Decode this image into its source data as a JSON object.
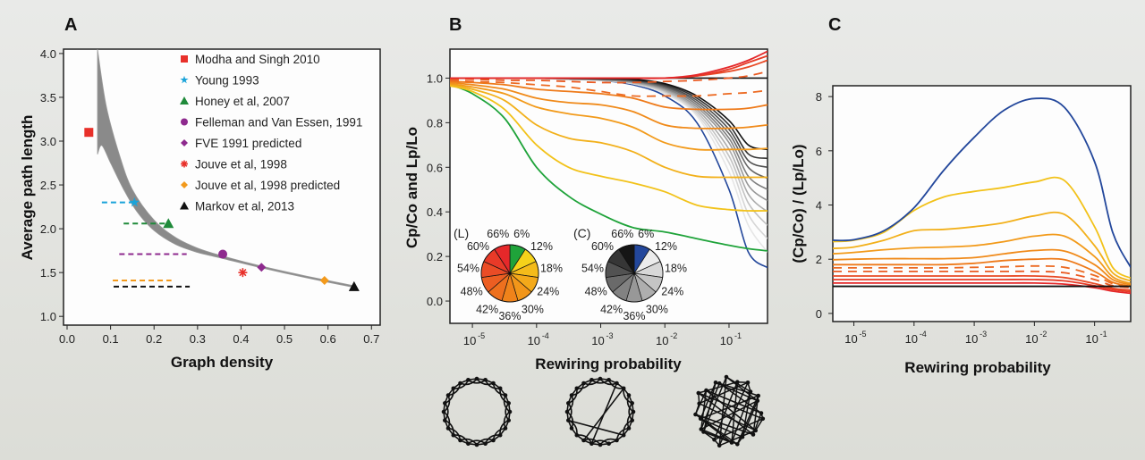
{
  "chart_data": [
    {
      "panel": "A",
      "type": "scatter",
      "title": "",
      "xlabel": "Graph density",
      "ylabel": "Average path length",
      "xlim": [
        0,
        0.72
      ],
      "ylim": [
        0.9,
        4.05
      ],
      "xticks": [
        "0.0",
        "0.1",
        "0.2",
        "0.3",
        "0.4",
        "0.5",
        "0.6",
        "0.7"
      ],
      "yticks": [
        "1.0",
        "1.5",
        "2.0",
        "2.5",
        "3.0",
        "3.5",
        "4.0"
      ],
      "legend_position": "top-right",
      "band": {
        "name": "theoretical range",
        "color": "#8a8a8a",
        "upper": [
          [
            0.07,
            4.05
          ],
          [
            0.09,
            3.4
          ],
          [
            0.12,
            2.85
          ],
          [
            0.15,
            2.45
          ],
          [
            0.2,
            2.1
          ],
          [
            0.25,
            1.9
          ],
          [
            0.3,
            1.78
          ],
          [
            0.35,
            1.7
          ],
          [
            0.45,
            1.57
          ],
          [
            0.55,
            1.46
          ],
          [
            0.66,
            1.35
          ]
        ],
        "lower": [
          [
            0.07,
            2.85
          ],
          [
            0.08,
            2.95
          ],
          [
            0.1,
            2.75
          ],
          [
            0.13,
            2.45
          ],
          [
            0.16,
            2.2
          ],
          [
            0.2,
            1.98
          ],
          [
            0.25,
            1.82
          ],
          [
            0.3,
            1.73
          ],
          [
            0.35,
            1.67
          ],
          [
            0.45,
            1.55
          ],
          [
            0.55,
            1.44
          ],
          [
            0.66,
            1.33
          ]
        ]
      },
      "series": [
        {
          "name": "Modha and Singh 2010",
          "marker": "square",
          "color": "#e8302a",
          "x": 0.05,
          "y": 3.1
        },
        {
          "name": "Young 1993",
          "marker": "star",
          "color": "#1aa3d9",
          "x": 0.155,
          "y": 2.3,
          "range": [
            0.08,
            0.155
          ]
        },
        {
          "name": "Honey et al, 2007",
          "marker": "triangle",
          "color": "#1f8a3a",
          "x": 0.233,
          "y": 2.06,
          "range": [
            0.13,
            0.233
          ]
        },
        {
          "name": "Felleman and Van Essen, 1991",
          "marker": "circle",
          "color": "#8e2a8e",
          "x": 0.358,
          "y": 1.71,
          "range": [
            0.12,
            0.275
          ]
        },
        {
          "name": "FVE 1991 predicted",
          "marker": "diamond",
          "color": "#8e2a8e",
          "x": 0.447,
          "y": 1.56
        },
        {
          "name": "Jouve et al, 1998",
          "marker": "asterisk",
          "color": "#e8302a",
          "x": 0.404,
          "y": 1.5
        },
        {
          "name": "Jouve et al, 1998 predicted",
          "marker": "diamond",
          "color": "#f39a1c",
          "x": 0.592,
          "y": 1.41,
          "range": [
            0.105,
            0.24
          ]
        },
        {
          "name": "Markov et al, 2013",
          "marker": "triangle",
          "color": "#111111",
          "x": 0.66,
          "y": 1.34,
          "range": [
            0.107,
            0.282
          ]
        }
      ]
    },
    {
      "panel": "B",
      "type": "line",
      "xlabel": "Rewiring probability",
      "ylabel": "Cp/Co and Lp/Lo",
      "xscale": "log",
      "xlim_log10": [
        -5.35,
        -0.4
      ],
      "ylim": [
        -0.1,
        1.13
      ],
      "xticks": [
        {
          "base": "10",
          "exp": "-5"
        },
        {
          "base": "10",
          "exp": "-4"
        },
        {
          "base": "10",
          "exp": "-3"
        },
        {
          "base": "10",
          "exp": "-2"
        },
        {
          "base": "10",
          "exp": "-1"
        }
      ],
      "yticks": [
        "0.0",
        "0.2",
        "0.4",
        "0.6",
        "0.8",
        "1.0"
      ],
      "x_log10": [
        -5.35,
        -5,
        -4.5,
        -4,
        -3.5,
        -3,
        -2.5,
        -2,
        -1.5,
        -1,
        -0.7,
        -0.4
      ],
      "series_L": [
        {
          "name": "6%",
          "color": "#1fa33a",
          "dash": false,
          "values": [
            0.97,
            0.93,
            0.82,
            0.6,
            0.47,
            0.39,
            0.33,
            0.31,
            0.28,
            0.25,
            0.235,
            0.225
          ]
        },
        {
          "name": "12%",
          "color": "#f2c21a",
          "dash": false,
          "values": [
            0.965,
            0.94,
            0.86,
            0.7,
            0.6,
            0.56,
            0.53,
            0.49,
            0.43,
            0.41,
            0.405,
            0.405
          ]
        },
        {
          "name": "18%",
          "color": "#f2b01a",
          "dash": false,
          "values": [
            0.97,
            0.95,
            0.9,
            0.79,
            0.73,
            0.71,
            0.67,
            0.6,
            0.56,
            0.555,
            0.555,
            0.555
          ]
        },
        {
          "name": "24%",
          "color": "#f29a1a",
          "dash": false,
          "values": [
            0.975,
            0.96,
            0.93,
            0.87,
            0.84,
            0.82,
            0.78,
            0.71,
            0.68,
            0.68,
            0.68,
            0.685
          ]
        },
        {
          "name": "30%",
          "color": "#f08a1a",
          "dash": false,
          "values": [
            0.98,
            0.97,
            0.95,
            0.91,
            0.89,
            0.88,
            0.85,
            0.79,
            0.775,
            0.775,
            0.78,
            0.79
          ]
        },
        {
          "name": "36%",
          "color": "#ee7a1a",
          "dash": false,
          "values": [
            0.985,
            0.98,
            0.97,
            0.95,
            0.94,
            0.93,
            0.91,
            0.87,
            0.86,
            0.86,
            0.865,
            0.88
          ]
        },
        {
          "name": "42%",
          "color": "#ec6a22",
          "dash": true,
          "values": [
            0.99,
            0.985,
            0.98,
            0.97,
            0.96,
            0.94,
            0.92,
            0.92,
            0.92,
            0.93,
            0.935,
            0.945
          ]
        },
        {
          "name": "48%",
          "color": "#ea5a22",
          "dash": true,
          "values": [
            0.995,
            0.995,
            0.99,
            0.99,
            0.985,
            0.98,
            0.98,
            0.985,
            0.99,
            1.0,
            1.01,
            1.03
          ]
        },
        {
          "name": "54%",
          "color": "#e84a26",
          "dash": false,
          "values": [
            1.0,
            1.0,
            1.0,
            1.0,
            1.0,
            1.0,
            1.0,
            1.0,
            1.01,
            1.03,
            1.05,
            1.08
          ]
        },
        {
          "name": "60%",
          "color": "#e63a26",
          "dash": false,
          "values": [
            1.0,
            1.0,
            1.0,
            1.0,
            1.0,
            1.0,
            1.0,
            1.0,
            1.01,
            1.04,
            1.07,
            1.1
          ]
        },
        {
          "name": "66%",
          "color": "#e4282a",
          "dash": false,
          "values": [
            1.0,
            1.0,
            1.0,
            1.0,
            1.0,
            1.0,
            1.0,
            1.0,
            1.015,
            1.05,
            1.08,
            1.12
          ]
        }
      ],
      "series_C": [
        {
          "name": "6%",
          "color": "#23479b",
          "values": [
            1.0,
            1.0,
            1.0,
            1.0,
            0.995,
            0.99,
            0.97,
            0.92,
            0.8,
            0.5,
            0.22,
            0.15
          ]
        },
        {
          "name": "12%",
          "color": "#e6e6e6",
          "values": [
            1.0,
            1.0,
            1.0,
            1.0,
            0.995,
            0.99,
            0.975,
            0.93,
            0.83,
            0.58,
            0.34,
            0.22
          ]
        },
        {
          "name": "18%",
          "color": "#d6d6d6",
          "values": [
            1.0,
            1.0,
            1.0,
            1.0,
            0.995,
            0.99,
            0.975,
            0.935,
            0.84,
            0.62,
            0.39,
            0.28
          ]
        },
        {
          "name": "24%",
          "color": "#c2c2c2",
          "values": [
            1.0,
            1.0,
            1.0,
            1.0,
            0.995,
            0.99,
            0.978,
            0.94,
            0.85,
            0.65,
            0.44,
            0.34
          ]
        },
        {
          "name": "30%",
          "color": "#acacac",
          "values": [
            1.0,
            1.0,
            1.0,
            1.0,
            0.995,
            0.992,
            0.98,
            0.945,
            0.86,
            0.68,
            0.48,
            0.4
          ]
        },
        {
          "name": "36%",
          "color": "#979797",
          "values": [
            1.0,
            1.0,
            1.0,
            1.0,
            0.997,
            0.993,
            0.982,
            0.95,
            0.87,
            0.71,
            0.52,
            0.45
          ]
        },
        {
          "name": "42%",
          "color": "#7f7f7f",
          "values": [
            1.0,
            1.0,
            1.0,
            1.0,
            0.997,
            0.994,
            0.985,
            0.955,
            0.88,
            0.73,
            0.56,
            0.5
          ]
        },
        {
          "name": "48%",
          "color": "#676767",
          "values": [
            1.0,
            1.0,
            1.0,
            1.0,
            0.998,
            0.995,
            0.987,
            0.96,
            0.89,
            0.75,
            0.6,
            0.55
          ]
        },
        {
          "name": "54%",
          "color": "#4f4f4f",
          "values": [
            1.0,
            1.0,
            1.0,
            1.0,
            0.998,
            0.996,
            0.99,
            0.965,
            0.9,
            0.77,
            0.63,
            0.6
          ]
        },
        {
          "name": "60%",
          "color": "#333333",
          "values": [
            1.0,
            1.0,
            1.0,
            1.0,
            0.999,
            0.997,
            0.992,
            0.97,
            0.91,
            0.79,
            0.66,
            0.64
          ]
        },
        {
          "name": "66%",
          "color": "#111111",
          "values": [
            1.0,
            1.0,
            1.0,
            1.0,
            0.999,
            0.998,
            0.995,
            0.975,
            0.92,
            0.81,
            0.7,
            0.68
          ]
        }
      ],
      "pie_L": {
        "label": "(L)",
        "slices": [
          {
            "name": "6%",
            "color": "#1fa33a"
          },
          {
            "name": "12%",
            "color": "#f5d21a"
          },
          {
            "name": "18%",
            "color": "#f4bb1a"
          },
          {
            "name": "24%",
            "color": "#f3a91a"
          },
          {
            "name": "30%",
            "color": "#f2961a"
          },
          {
            "name": "36%",
            "color": "#f0831a"
          },
          {
            "name": "42%",
            "color": "#ee701e"
          },
          {
            "name": "48%",
            "color": "#ec5e22"
          },
          {
            "name": "54%",
            "color": "#ea4c26"
          },
          {
            "name": "60%",
            "color": "#e83a28"
          },
          {
            "name": "66%",
            "color": "#e6282a"
          }
        ]
      },
      "pie_C": {
        "label": "(C)",
        "slices": [
          {
            "name": "6%",
            "color": "#23479b"
          },
          {
            "name": "12%",
            "color": "#ececec"
          },
          {
            "name": "18%",
            "color": "#d8d8d8"
          },
          {
            "name": "24%",
            "color": "#c4c4c4"
          },
          {
            "name": "30%",
            "color": "#aeaeae"
          },
          {
            "name": "36%",
            "color": "#989898"
          },
          {
            "name": "42%",
            "color": "#828282"
          },
          {
            "name": "48%",
            "color": "#6a6a6a"
          },
          {
            "name": "54%",
            "color": "#525252"
          },
          {
            "name": "60%",
            "color": "#363636"
          },
          {
            "name": "66%",
            "color": "#151515"
          }
        ]
      }
    },
    {
      "panel": "C",
      "type": "line",
      "xlabel": "Rewiring probability",
      "ylabel": "(Cp/Co) / (Lp/Lo)",
      "xscale": "log",
      "xlim_log10": [
        -5.35,
        -0.4
      ],
      "ylim": [
        -0.3,
        8.4
      ],
      "xticks": [
        {
          "base": "10",
          "exp": "-5"
        },
        {
          "base": "10",
          "exp": "-4"
        },
        {
          "base": "10",
          "exp": "-3"
        },
        {
          "base": "10",
          "exp": "-2"
        },
        {
          "base": "10",
          "exp": "-1"
        }
      ],
      "yticks": [
        "0",
        "2",
        "4",
        "6",
        "8"
      ],
      "x_log10": [
        -5.35,
        -5,
        -4.5,
        -4,
        -3.5,
        -3,
        -2.5,
        -2,
        -1.5,
        -1,
        -0.7,
        -0.4
      ],
      "reference_line": {
        "y": 1,
        "color": "#111111"
      },
      "series": [
        {
          "name": "6%",
          "color": "#23479b",
          "dash": false,
          "values": [
            2.7,
            2.72,
            3.05,
            3.9,
            5.3,
            6.5,
            7.5,
            7.93,
            7.6,
            5.6,
            3.0,
            1.7
          ]
        },
        {
          "name": "12%",
          "color": "#f2c21a",
          "dash": false,
          "values": [
            2.65,
            2.7,
            3.0,
            3.8,
            4.3,
            4.5,
            4.65,
            4.85,
            4.9,
            3.2,
            1.7,
            1.3
          ]
        },
        {
          "name": "18%",
          "color": "#f2b01a",
          "dash": false,
          "values": [
            2.4,
            2.45,
            2.7,
            3.05,
            3.1,
            3.2,
            3.35,
            3.6,
            3.65,
            2.5,
            1.5,
            1.2
          ]
        },
        {
          "name": "24%",
          "color": "#f29a1a",
          "dash": false,
          "values": [
            2.2,
            2.25,
            2.35,
            2.42,
            2.45,
            2.5,
            2.65,
            2.85,
            2.85,
            2.1,
            1.35,
            1.1
          ]
        },
        {
          "name": "30%",
          "color": "#f08a1a",
          "dash": false,
          "values": [
            1.98,
            2.0,
            2.02,
            2.02,
            2.02,
            2.06,
            2.2,
            2.32,
            2.3,
            1.8,
            1.25,
            1.05
          ]
        },
        {
          "name": "36%",
          "color": "#ee7a1a",
          "dash": false,
          "values": [
            1.8,
            1.8,
            1.8,
            1.8,
            1.8,
            1.85,
            1.95,
            2.0,
            1.98,
            1.55,
            1.15,
            1.0
          ]
        },
        {
          "name": "42%",
          "color": "#ec6a22",
          "dash": true,
          "values": [
            1.68,
            1.68,
            1.68,
            1.68,
            1.68,
            1.7,
            1.72,
            1.75,
            1.7,
            1.4,
            1.1,
            0.98
          ]
        },
        {
          "name": "48%",
          "color": "#ea5a22",
          "dash": true,
          "values": [
            1.55,
            1.55,
            1.55,
            1.55,
            1.55,
            1.55,
            1.55,
            1.55,
            1.5,
            1.25,
            1.02,
            0.95
          ]
        },
        {
          "name": "54%",
          "color": "#e84a26",
          "dash": false,
          "values": [
            1.38,
            1.38,
            1.38,
            1.38,
            1.38,
            1.38,
            1.38,
            1.38,
            1.32,
            1.1,
            0.93,
            0.86
          ]
        },
        {
          "name": "60%",
          "color": "#e63a26",
          "dash": false,
          "values": [
            1.25,
            1.25,
            1.25,
            1.25,
            1.25,
            1.25,
            1.25,
            1.25,
            1.2,
            1.02,
            0.88,
            0.8
          ]
        },
        {
          "name": "66%",
          "color": "#e4282a",
          "dash": false,
          "values": [
            1.12,
            1.12,
            1.12,
            1.12,
            1.12,
            1.12,
            1.12,
            1.12,
            1.08,
            0.95,
            0.82,
            0.74
          ]
        }
      ]
    }
  ],
  "panels": {
    "A": {
      "letter": "A"
    },
    "B": {
      "letter": "B"
    },
    "C": {
      "letter": "C"
    }
  },
  "network_illustrations": [
    {
      "name": "regular-lattice",
      "kind": "ring"
    },
    {
      "name": "small-world",
      "kind": "small-world"
    },
    {
      "name": "random",
      "kind": "random"
    }
  ]
}
